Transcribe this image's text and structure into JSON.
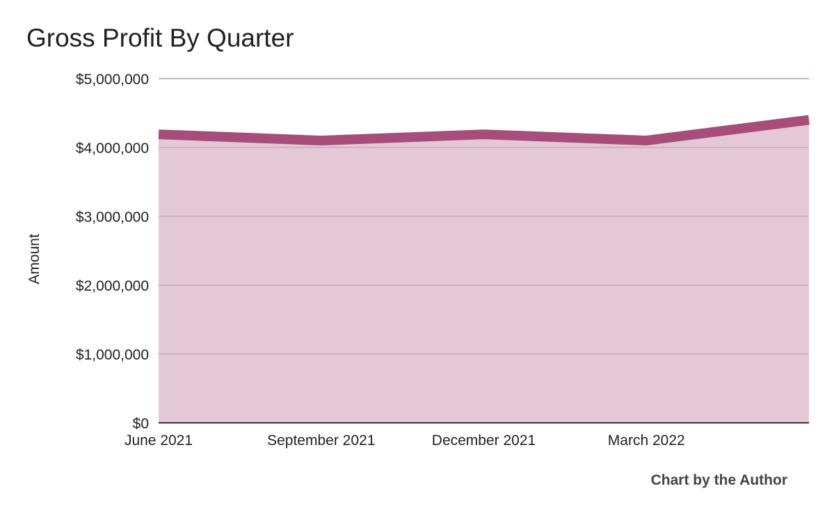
{
  "chart_data": {
    "type": "area",
    "title": "Gross Profit By Quarter",
    "xlabel": "",
    "ylabel": "Amount",
    "ylim": [
      0,
      5000000
    ],
    "y_ticks": [
      0,
      1000000,
      2000000,
      3000000,
      4000000,
      5000000
    ],
    "y_tick_labels": [
      "$0",
      "$1,000,000",
      "$2,000,000",
      "$3,000,000",
      "$4,000,000",
      "$5,000,000"
    ],
    "categories": [
      "June 2021",
      "September 2021",
      "December 2021",
      "March 2022",
      ""
    ],
    "x_tick_labels": [
      "June 2021",
      "September 2021",
      "December 2021",
      "March 2022"
    ],
    "series": [
      {
        "values": [
          4190000,
          4100000,
          4190000,
          4100000,
          4400000
        ],
        "color": "#a64d79"
      }
    ],
    "grid": true,
    "legend": "none"
  },
  "credit": "Chart by the Author",
  "colors": {
    "line": "#a64d79",
    "fill": "#e4c8d6",
    "grid": "#c4a7b6",
    "baseline": "#333333"
  }
}
